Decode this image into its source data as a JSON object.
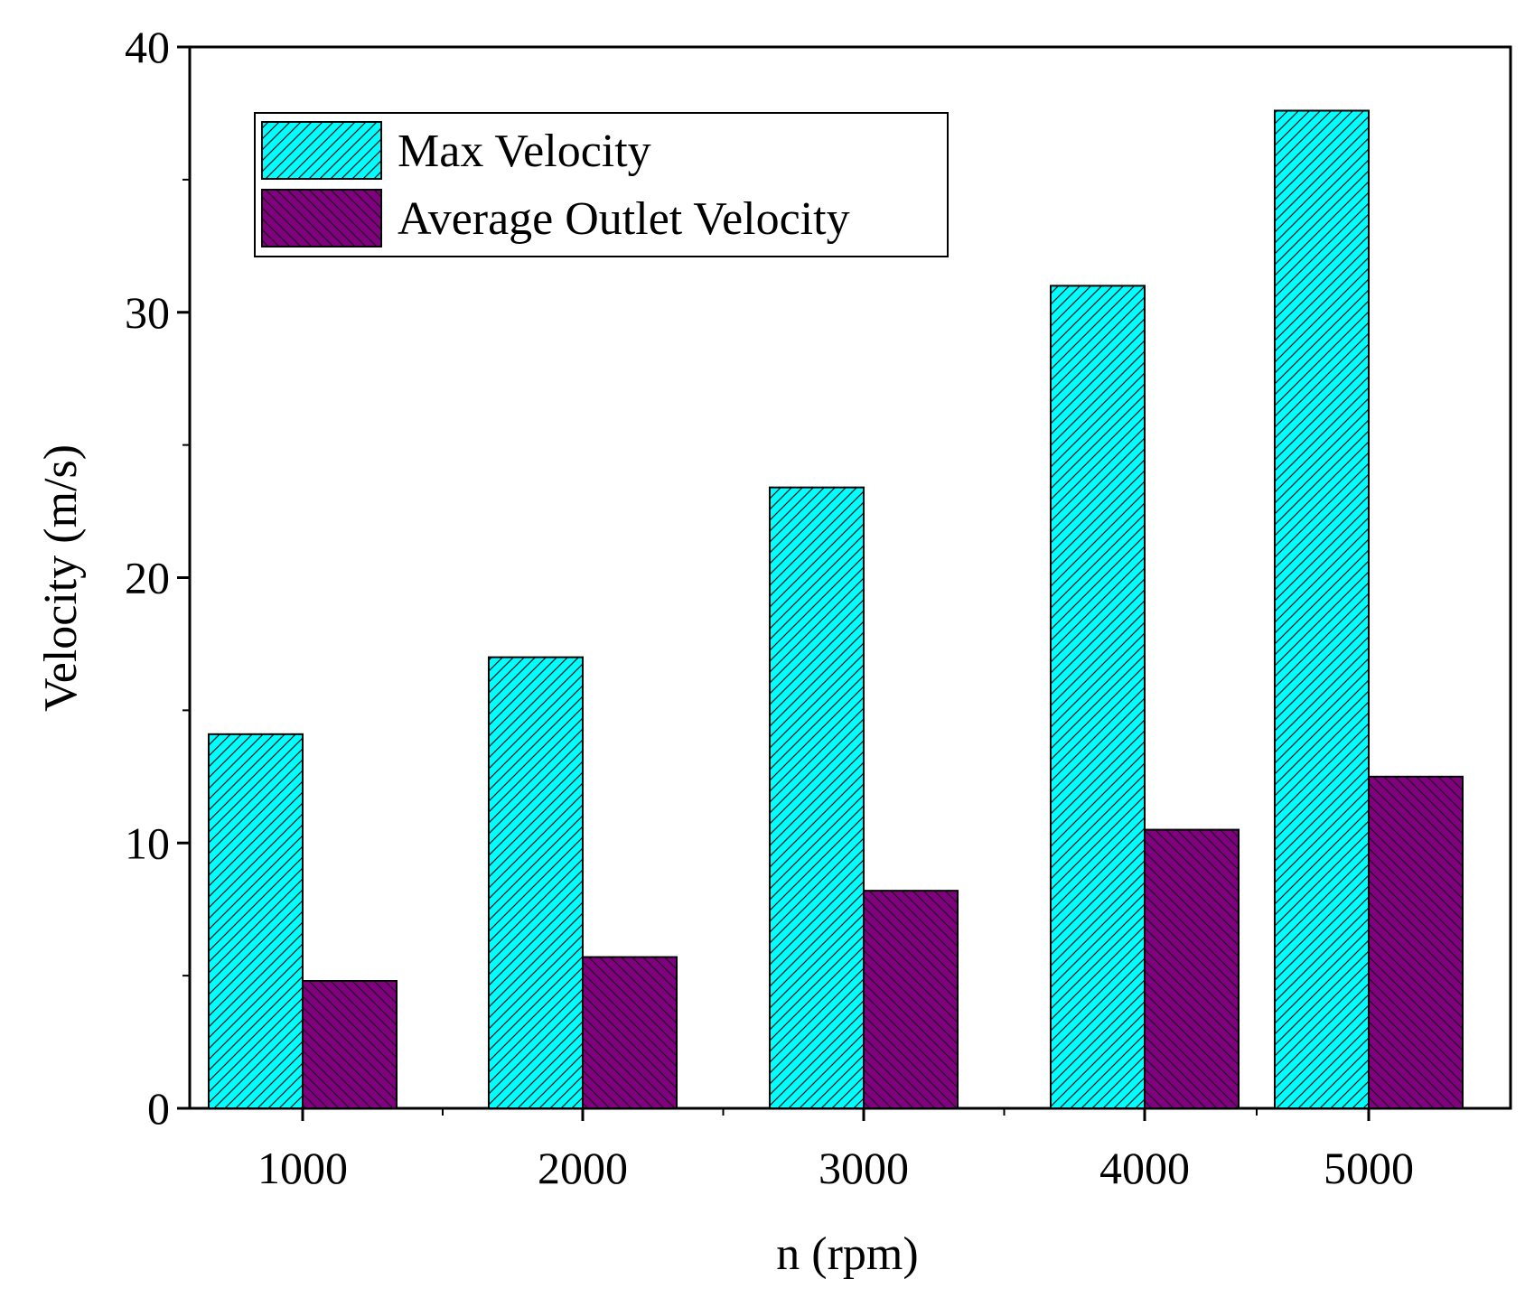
{
  "chart_data": {
    "type": "bar",
    "title": "",
    "xlabel": "n (rpm)",
    "ylabel": "Velocity (m/s)",
    "categories": [
      "1000",
      "2000",
      "3000",
      "4000",
      "5000"
    ],
    "ylim": [
      0,
      40
    ],
    "yticks": [
      "0",
      "10",
      "20",
      "30",
      "40"
    ],
    "grid": false,
    "legend_position": "top-left",
    "series": [
      {
        "name": "Max Velocity",
        "values": [
          14.1,
          17.0,
          23.4,
          31.0,
          37.6
        ],
        "color": "#00ffff",
        "pattern": "hatch-forward"
      },
      {
        "name": "Average Outlet Velocity",
        "values": [
          4.8,
          5.7,
          8.2,
          10.5,
          12.5
        ],
        "color": "#800080",
        "pattern": "hatch-backward"
      }
    ]
  }
}
